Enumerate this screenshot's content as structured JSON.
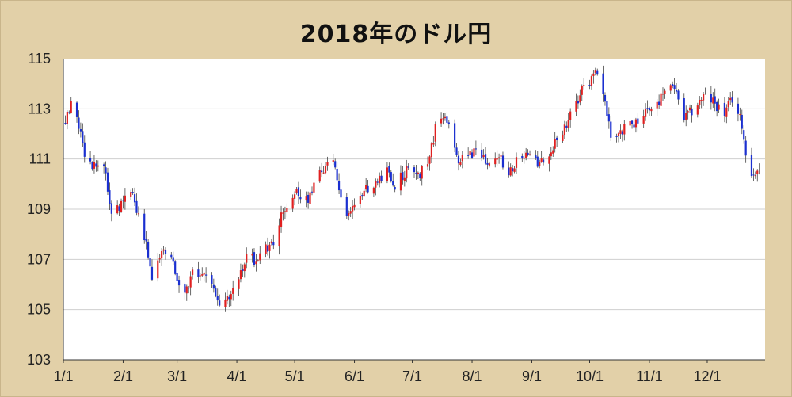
{
  "chart_data": {
    "type": "candlestick",
    "title": "2018年のドル円",
    "y_ticks": [
      103,
      105,
      107,
      109,
      111,
      113,
      115
    ],
    "ylim": [
      103,
      115
    ],
    "x_tick_labels": [
      "1/1",
      "2/1",
      "3/1",
      "4/1",
      "5/1",
      "6/1",
      "7/1",
      "8/1",
      "9/1",
      "10/1",
      "11/1",
      "12/1"
    ],
    "x_tick_dates": [
      "2018-01-01",
      "2018-02-01",
      "2018-03-01",
      "2018-04-01",
      "2018-05-01",
      "2018-06-01",
      "2018-07-01",
      "2018-08-01",
      "2018-09-01",
      "2018-10-01",
      "2018-11-01",
      "2018-12-01"
    ],
    "xlim": [
      "2018-01-01",
      "2018-12-31"
    ],
    "grid": "horizontal",
    "colors": {
      "up": "#e02020",
      "down": "#1a2fd0",
      "background": "#ffffff",
      "frame": "#e2d0a8"
    },
    "close_series": {
      "dates": [
        "2018-01-02",
        "2018-01-05",
        "2018-01-09",
        "2018-01-12",
        "2018-01-16",
        "2018-01-19",
        "2018-01-23",
        "2018-01-26",
        "2018-01-31",
        "2018-02-05",
        "2018-02-08",
        "2018-02-13",
        "2018-02-16",
        "2018-02-21",
        "2018-02-26",
        "2018-03-01",
        "2018-03-05",
        "2018-03-09",
        "2018-03-14",
        "2018-03-19",
        "2018-03-23",
        "2018-03-27",
        "2018-04-02",
        "2018-04-06",
        "2018-04-11",
        "2018-04-16",
        "2018-04-20",
        "2018-04-25",
        "2018-05-01",
        "2018-05-04",
        "2018-05-09",
        "2018-05-14",
        "2018-05-21",
        "2018-05-25",
        "2018-05-29",
        "2018-06-04",
        "2018-06-08",
        "2018-06-13",
        "2018-06-18",
        "2018-06-22",
        "2018-06-28",
        "2018-07-04",
        "2018-07-10",
        "2018-07-13",
        "2018-07-19",
        "2018-07-24",
        "2018-07-30",
        "2018-08-03",
        "2018-08-09",
        "2018-08-14",
        "2018-08-20",
        "2018-08-24",
        "2018-08-30",
        "2018-09-05",
        "2018-09-11",
        "2018-09-17",
        "2018-09-21",
        "2018-09-27",
        "2018-10-02",
        "2018-10-04",
        "2018-10-09",
        "2018-10-12",
        "2018-10-18",
        "2018-10-24",
        "2018-10-30",
        "2018-11-05",
        "2018-11-09",
        "2018-11-13",
        "2018-11-19",
        "2018-11-23",
        "2018-11-29",
        "2018-12-04",
        "2018-12-10",
        "2018-12-14",
        "2018-12-19",
        "2018-12-21",
        "2018-12-25",
        "2018-12-28"
      ],
      "values": [
        112.6,
        113.1,
        112.4,
        111.1,
        110.7,
        110.8,
        110.4,
        108.8,
        109.2,
        109.8,
        108.9,
        107.6,
        106.2,
        107.5,
        107.0,
        106.3,
        105.6,
        106.5,
        106.4,
        106.0,
        105.2,
        105.4,
        106.3,
        107.2,
        106.9,
        107.4,
        107.7,
        108.9,
        109.8,
        109.2,
        109.5,
        110.5,
        111.0,
        109.3,
        108.8,
        109.6,
        109.8,
        110.2,
        110.5,
        110.0,
        110.5,
        110.3,
        111.0,
        112.3,
        112.6,
        111.0,
        111.0,
        111.4,
        110.8,
        111.2,
        110.4,
        110.9,
        111.3,
        110.7,
        111.4,
        112.1,
        112.7,
        113.7,
        114.2,
        114.5,
        113.2,
        112.0,
        112.2,
        112.4,
        113.0,
        113.1,
        113.8,
        114.0,
        112.6,
        112.9,
        113.5,
        113.3,
        112.8,
        113.4,
        112.4,
        111.2,
        110.3,
        110.7
      ]
    }
  }
}
